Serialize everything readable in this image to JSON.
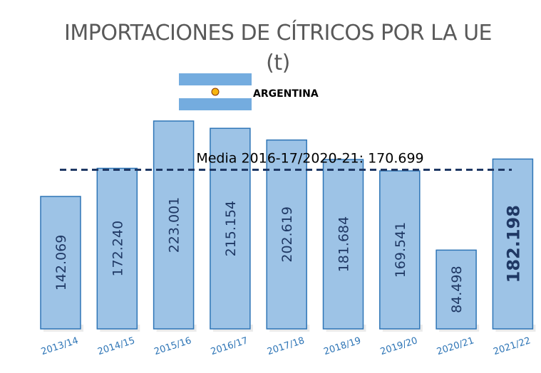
{
  "chart_data": {
    "type": "bar",
    "title": "IMPORTACIONES DE CÍTRICOS POR LA UE (t)",
    "subtitle": "ARGENTINA",
    "categories": [
      "2013/14",
      "2014/15",
      "2015/16",
      "2016/17",
      "2017/18",
      "2018/19",
      "2019/20",
      "2020/21",
      "2021/22"
    ],
    "values": [
      142069,
      172240,
      223001,
      215154,
      202619,
      181684,
      169541,
      84498,
      182198
    ],
    "value_labels": [
      "142.069",
      "172.240",
      "223.001",
      "215.154",
      "202.619",
      "181.684",
      "169.541",
      "84.498",
      "182.198"
    ],
    "color": "#9dc3e6",
    "reference_line": {
      "value": 170699,
      "label": "Media 2016-17/2020-21: 170.699"
    }
  }
}
